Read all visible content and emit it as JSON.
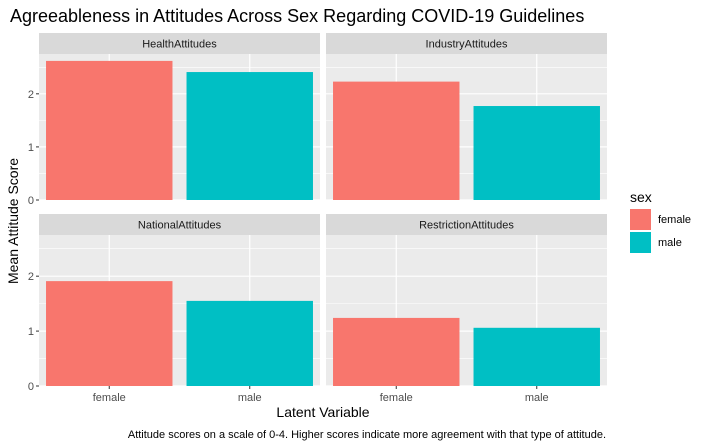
{
  "chart_data": {
    "type": "bar",
    "title": "Agreeableness in Attitudes Across Sex Regarding COVID-19 Guidelines",
    "xlabel": "Latent Variable",
    "ylabel": "Mean Attitude Score",
    "caption": "Attitude scores on a scale of 0-4. Higher scores indicate more agreement with that type of attitude.",
    "categories": [
      "female",
      "male"
    ],
    "ylim": [
      0,
      2.75
    ],
    "yticks": [
      0,
      1,
      2
    ],
    "grid": true,
    "legend": {
      "title": "sex",
      "position": "right",
      "entries": [
        {
          "label": "female",
          "color": "#F8766D"
        },
        {
          "label": "male",
          "color": "#00BFC4"
        }
      ]
    },
    "facets": [
      {
        "name": "HealthAttitudes",
        "values": [
          2.62,
          2.41
        ]
      },
      {
        "name": "IndustryAttitudes",
        "values": [
          2.23,
          1.77
        ]
      },
      {
        "name": "NationalAttitudes",
        "values": [
          1.91,
          1.55
        ]
      },
      {
        "name": "RestrictionAttitudes",
        "values": [
          1.24,
          1.06
        ]
      }
    ]
  }
}
